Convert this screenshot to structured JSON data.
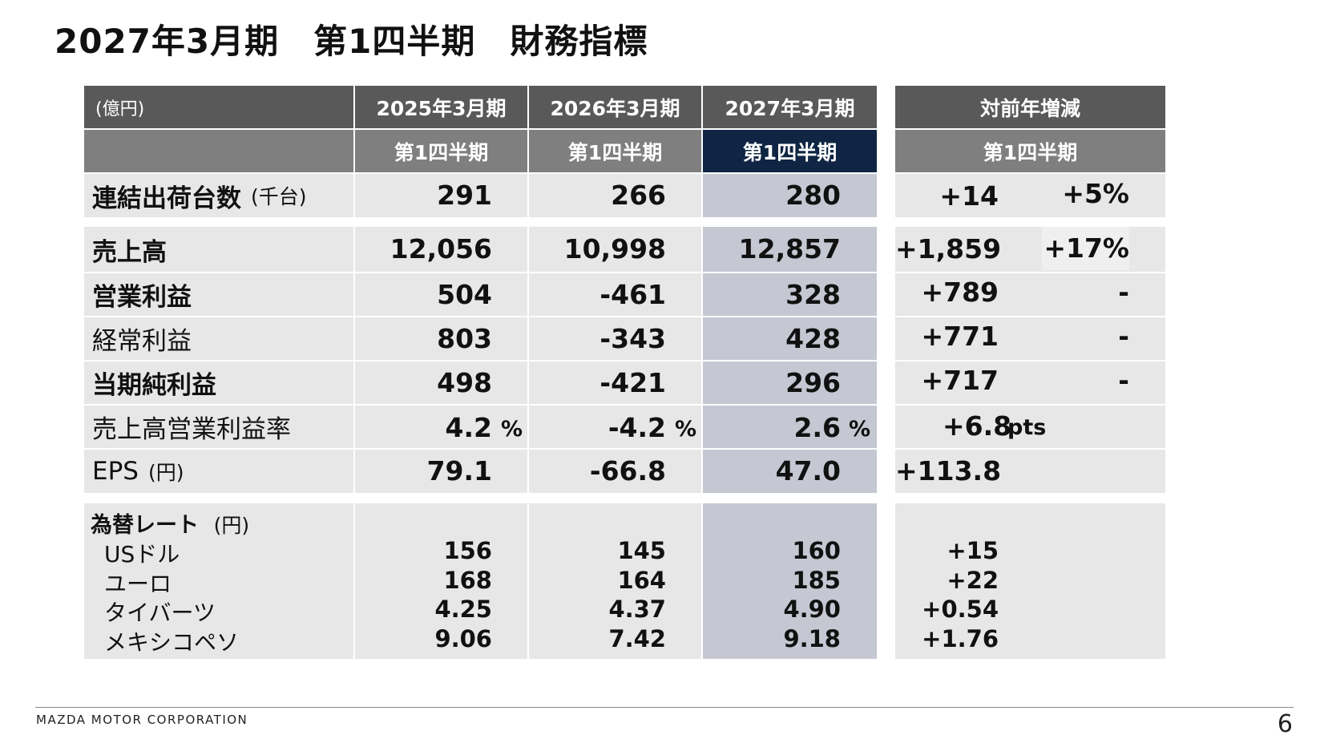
{
  "title": "2027年3月期　第1四半期　財務指標",
  "table": {
    "unit_label": "(億円)",
    "col1_year": "2025年3月期",
    "col2_year": "2026年3月期",
    "col3_year": "2027年3月期",
    "col4_header": "対前年増減",
    "quarter": "第1四半期",
    "shipments": {
      "label": "連結出荷台数",
      "unit": "(千台)",
      "v1": "291",
      "v2": "266",
      "v3": "280",
      "diff": "+14",
      "pct": "+5%"
    },
    "rows": [
      {
        "label": "売上高",
        "v1": "12,056",
        "v2": "10,998",
        "v3": "12,857",
        "diff": "+1,859",
        "pct": "+17%"
      },
      {
        "label": "営業利益",
        "v1": "504",
        "v2": "-461",
        "v3": "328",
        "diff": "+789",
        "pct": "-"
      },
      {
        "label": "経常利益",
        "v1": "803",
        "v2": "-343",
        "v3": "428",
        "diff": "+771",
        "pct": "-"
      },
      {
        "label": "当期純利益",
        "v1": "498",
        "v2": "-421",
        "v3": "296",
        "diff": "+717",
        "pct": "-"
      },
      {
        "label": "売上高営業利益率",
        "v1": "4.2",
        "v2": "-4.2",
        "v3": "2.6",
        "diff": "+6.8",
        "pct_unit": "%",
        "diff_unit": "pts"
      },
      {
        "label": "EPS",
        "unit": "(円)",
        "v1": "79.1",
        "v2": "-66.8",
        "v3": "47.0",
        "diff": "+113.8"
      }
    ],
    "fx": {
      "label": "為替レート",
      "unit": "(円)",
      "items": [
        {
          "label": "USドル",
          "v1": "156",
          "v2": "145",
          "v3": "160",
          "diff": "+15"
        },
        {
          "label": "ユーロ",
          "v1": "168",
          "v2": "164",
          "v3": "185",
          "diff": "+22"
        },
        {
          "label": "タイバーツ",
          "v1": "4.25",
          "v2": "4.37",
          "v3": "4.90",
          "diff": "+0.54"
        },
        {
          "label": "メキシコペソ",
          "v1": "9.06",
          "v2": "7.42",
          "v3": "9.18",
          "diff": "+1.76"
        }
      ]
    }
  },
  "footer": {
    "company": "MAZDA MOTOR CORPORATION",
    "page_number": "6"
  },
  "colors": {
    "header_dark": "#595959",
    "header_mid": "#7f7f7f",
    "header_selected": "#0f2543",
    "row_bg": "#e7e7e7",
    "highlight_col": "#c5c8d2"
  }
}
